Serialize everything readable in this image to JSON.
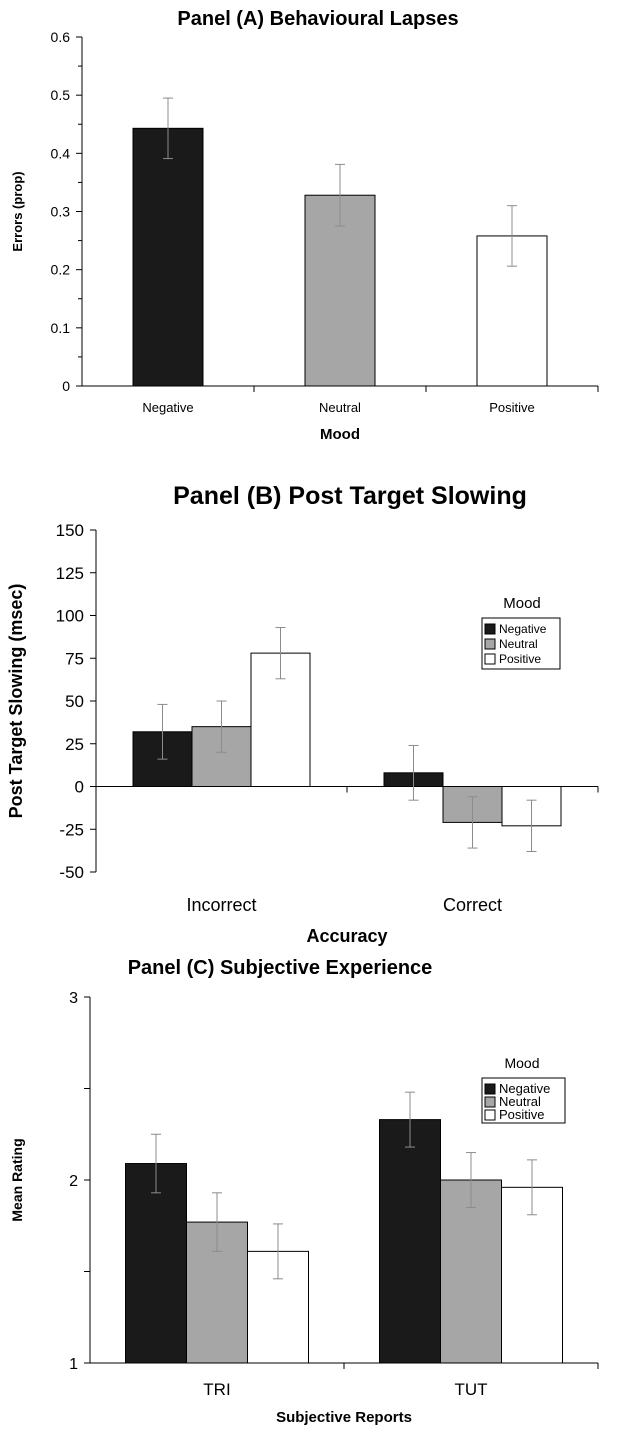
{
  "colors": {
    "Negative": "#1a1a1a",
    "Neutral": "#a6a6a6",
    "Positive": "#ffffff",
    "axis": "#000000",
    "errorbar": "#8c8c8c"
  },
  "chart_data": [
    {
      "type": "bar",
      "title": "Panel (A)  Behavioural Lapses",
      "xlabel": "Mood",
      "ylabel": "Errors (prop)",
      "ylim": [
        0,
        0.6
      ],
      "yticks": [
        "0",
        "0.1",
        "0.2",
        "0.3",
        "0.4",
        "0.5",
        "0.6"
      ],
      "categories": [
        "Negative",
        "Neutral",
        "Positive"
      ],
      "values": [
        0.443,
        0.328,
        0.258
      ],
      "errors": [
        0.052,
        0.053,
        0.052
      ],
      "grid": false
    },
    {
      "type": "bar",
      "title": "Panel (B) Post Target Slowing",
      "xlabel": "Accuracy",
      "ylabel": "Post Target Slowing (msec)",
      "ylim": [
        -50,
        150
      ],
      "yticks": [
        "-50",
        "-25",
        "0",
        "25",
        "50",
        "75",
        "100",
        "125",
        "150"
      ],
      "categories": [
        "Incorrect",
        "Correct"
      ],
      "legend": {
        "title": "Mood",
        "placement": "right"
      },
      "series": [
        {
          "name": "Negative",
          "values": [
            32,
            8
          ],
          "errors": [
            16,
            16
          ]
        },
        {
          "name": "Neutral",
          "values": [
            35,
            -21
          ],
          "errors": [
            15,
            15
          ]
        },
        {
          "name": "Positive",
          "values": [
            78,
            -23
          ],
          "errors": [
            15,
            15
          ]
        }
      ],
      "grid": false
    },
    {
      "type": "bar",
      "title": "Panel (C) Subjective Experience",
      "xlabel": "Subjective Reports",
      "ylabel": "Mean Rating",
      "ylim": [
        1,
        3
      ],
      "yticks": [
        "1",
        "",
        "2",
        "",
        "3"
      ],
      "categories": [
        "TRI",
        "TUT"
      ],
      "legend": {
        "title": "Mood",
        "placement": "right"
      },
      "series": [
        {
          "name": "Negative",
          "values": [
            2.09,
            2.33
          ],
          "errors": [
            0.16,
            0.15
          ]
        },
        {
          "name": "Neutral",
          "values": [
            1.77,
            2.0
          ],
          "errors": [
            0.16,
            0.15
          ]
        },
        {
          "name": "Positive",
          "values": [
            1.61,
            1.96
          ],
          "errors": [
            0.15,
            0.15
          ]
        }
      ],
      "grid": false
    }
  ]
}
